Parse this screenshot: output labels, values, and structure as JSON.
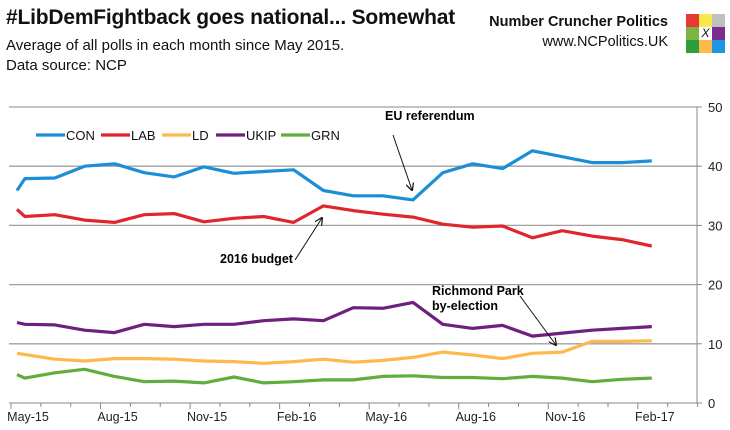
{
  "header": {
    "title": "#LibDemFightback goes national... Somewhat",
    "subtitle": "Average of all polls in each month since May 2015.",
    "source": "Data source: NCP",
    "brand_name": "Number Cruncher Politics",
    "brand_url": "www.NCPolitics.UK",
    "logo_mark": "X",
    "logo_colors": [
      "#e53935",
      "#f5ea4a",
      "#c0c0c0",
      "#7cb342",
      "#ffffff",
      "#7b2d8e",
      "#2e9e3a",
      "#fdb94e",
      "#2196e0"
    ]
  },
  "chart_data": {
    "type": "line",
    "title": "#LibDemFightback goes national... Somewhat",
    "x": [
      "2015-05-07",
      "2015-05-15",
      "2015-06-15",
      "2015-07-15",
      "2015-08-15",
      "2015-09-15",
      "2015-10-15",
      "2015-11-15",
      "2015-12-15",
      "2016-01-15",
      "2016-02-15",
      "2016-03-15",
      "2016-04-15",
      "2016-05-15",
      "2016-06-15",
      "2016-07-15",
      "2016-08-15",
      "2016-09-15",
      "2016-10-15",
      "2016-11-15",
      "2016-12-15",
      "2017-01-15",
      "2017-02-15"
    ],
    "x_tick_labels": [
      "May-15",
      "Aug-15",
      "Nov-15",
      "Feb-16",
      "May-16",
      "Aug-16",
      "Nov-16",
      "Feb-17"
    ],
    "ylim": [
      0,
      50
    ],
    "y_ticks": [
      0,
      10,
      20,
      30,
      40,
      50
    ],
    "y_axis_side": "right",
    "grid": "horizontal",
    "legend_position": "top-left",
    "series": [
      {
        "name": "CON",
        "color": "#1a8fd6",
        "values": [
          35.9,
          37.9,
          38.0,
          40.0,
          40.4,
          38.9,
          38.2,
          39.9,
          38.8,
          39.1,
          39.4,
          35.9,
          35.0,
          35.0,
          34.3,
          38.9,
          40.4,
          39.6,
          42.6,
          41.6,
          40.6,
          40.6,
          40.9
        ]
      },
      {
        "name": "LAB",
        "color": "#e0262b",
        "values": [
          32.7,
          31.5,
          31.8,
          30.9,
          30.5,
          31.8,
          32.0,
          30.6,
          31.2,
          31.5,
          30.5,
          33.3,
          32.5,
          31.9,
          31.4,
          30.2,
          29.7,
          29.9,
          27.9,
          29.1,
          28.2,
          27.6,
          26.5
        ]
      },
      {
        "name": "LD",
        "color": "#fdb94e",
        "values": [
          8.4,
          8.2,
          7.4,
          7.1,
          7.5,
          7.5,
          7.4,
          7.1,
          7.0,
          6.7,
          7.0,
          7.4,
          6.9,
          7.2,
          7.7,
          8.6,
          8.1,
          7.5,
          8.4,
          8.6,
          10.4,
          10.4,
          10.5
        ]
      },
      {
        "name": "UKIP",
        "color": "#6f1f7e",
        "values": [
          13.6,
          13.3,
          13.2,
          12.3,
          11.9,
          13.3,
          12.9,
          13.3,
          13.3,
          13.9,
          14.2,
          13.9,
          16.1,
          16.0,
          17.0,
          13.3,
          12.6,
          13.1,
          11.3,
          11.8,
          12.3,
          12.6,
          12.9
        ]
      },
      {
        "name": "GRN",
        "color": "#5fae3e",
        "values": [
          4.8,
          4.2,
          5.1,
          5.7,
          4.5,
          3.6,
          3.7,
          3.4,
          4.4,
          3.4,
          3.6,
          3.9,
          3.9,
          4.5,
          4.6,
          4.3,
          4.3,
          4.1,
          4.5,
          4.2,
          3.6,
          4.0,
          4.2
        ]
      }
    ],
    "annotations": [
      {
        "text": "EU referendum",
        "target_x": "2016-06-15"
      },
      {
        "text": "2016 budget",
        "target_x": "2016-03-15"
      },
      {
        "text": "Richmond Park",
        "text2": "by-election",
        "target_x": "2016-12-01"
      }
    ]
  }
}
